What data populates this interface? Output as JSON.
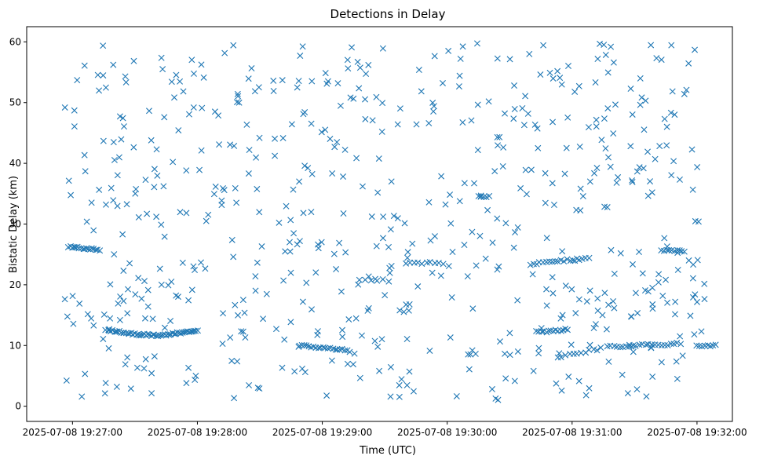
{
  "chart_data": {
    "type": "scatter",
    "title": "Detections in Delay",
    "xlabel": "Time (UTC)",
    "ylabel": "Bistatic Delay (km)",
    "x_unit": "seconds after 2025-07-08 19:27:00 UTC",
    "xlim": [
      -22,
      317
    ],
    "ylim": [
      -2.5,
      62.5
    ],
    "x_ticks": [
      {
        "value": 0,
        "label": "2025-07-08 19:27:00"
      },
      {
        "value": 60,
        "label": "2025-07-08 19:28:00"
      },
      {
        "value": 120,
        "label": "2025-07-08 19:29:00"
      },
      {
        "value": 180,
        "label": "2025-07-08 19:30:00"
      },
      {
        "value": 240,
        "label": "2025-07-08 19:31:00"
      },
      {
        "value": 300,
        "label": "2025-07-08 19:32:00"
      }
    ],
    "y_ticks": [
      0,
      10,
      20,
      30,
      40,
      50,
      60
    ],
    "marker": "x",
    "color": "#1f77b4",
    "grid": false,
    "n_random_points": 620,
    "random_seed": 20250708,
    "tracks": [
      {
        "name": "track-a",
        "x_start": -2,
        "x_end": 13,
        "y_start": 26.3,
        "y_end": 25.7,
        "count": 18
      },
      {
        "name": "track-b",
        "x_start": 17,
        "x_end": 60,
        "y_start": 12.6,
        "y_end": 12.6,
        "curve": -0.9,
        "count": 55
      },
      {
        "name": "track-c",
        "x_start": 109,
        "x_end": 133,
        "y_start": 10.1,
        "y_end": 9.1,
        "count": 22
      },
      {
        "name": "track-d",
        "x_start": 138,
        "x_end": 152,
        "y_start": 20.9,
        "y_end": 20.7,
        "count": 6
      },
      {
        "name": "track-e",
        "x_start": 160,
        "x_end": 178,
        "y_start": 23.6,
        "y_end": 23.6,
        "count": 10
      },
      {
        "name": "track-f",
        "x_start": 195,
        "x_end": 200,
        "y_start": 34.6,
        "y_end": 34.6,
        "count": 5
      },
      {
        "name": "track-g",
        "x_start": 220,
        "x_end": 248,
        "y_start": 23.4,
        "y_end": 24.4,
        "count": 20
      },
      {
        "name": "track-h",
        "x_start": 223,
        "x_end": 238,
        "y_start": 12.2,
        "y_end": 12.6,
        "count": 14
      },
      {
        "name": "track-i",
        "x_start": 233,
        "x_end": 254,
        "y_start": 8.1,
        "y_end": 9.5,
        "count": 12
      },
      {
        "name": "track-j",
        "x_start": 257,
        "x_end": 292,
        "y_start": 9.8,
        "y_end": 10.3,
        "count": 24
      },
      {
        "name": "track-k",
        "x_start": 283,
        "x_end": 294,
        "y_start": 25.6,
        "y_end": 25.6,
        "count": 10
      },
      {
        "name": "track-l",
        "x_start": 300,
        "x_end": 309,
        "y_start": 9.9,
        "y_end": 10.1,
        "count": 8
      }
    ]
  }
}
